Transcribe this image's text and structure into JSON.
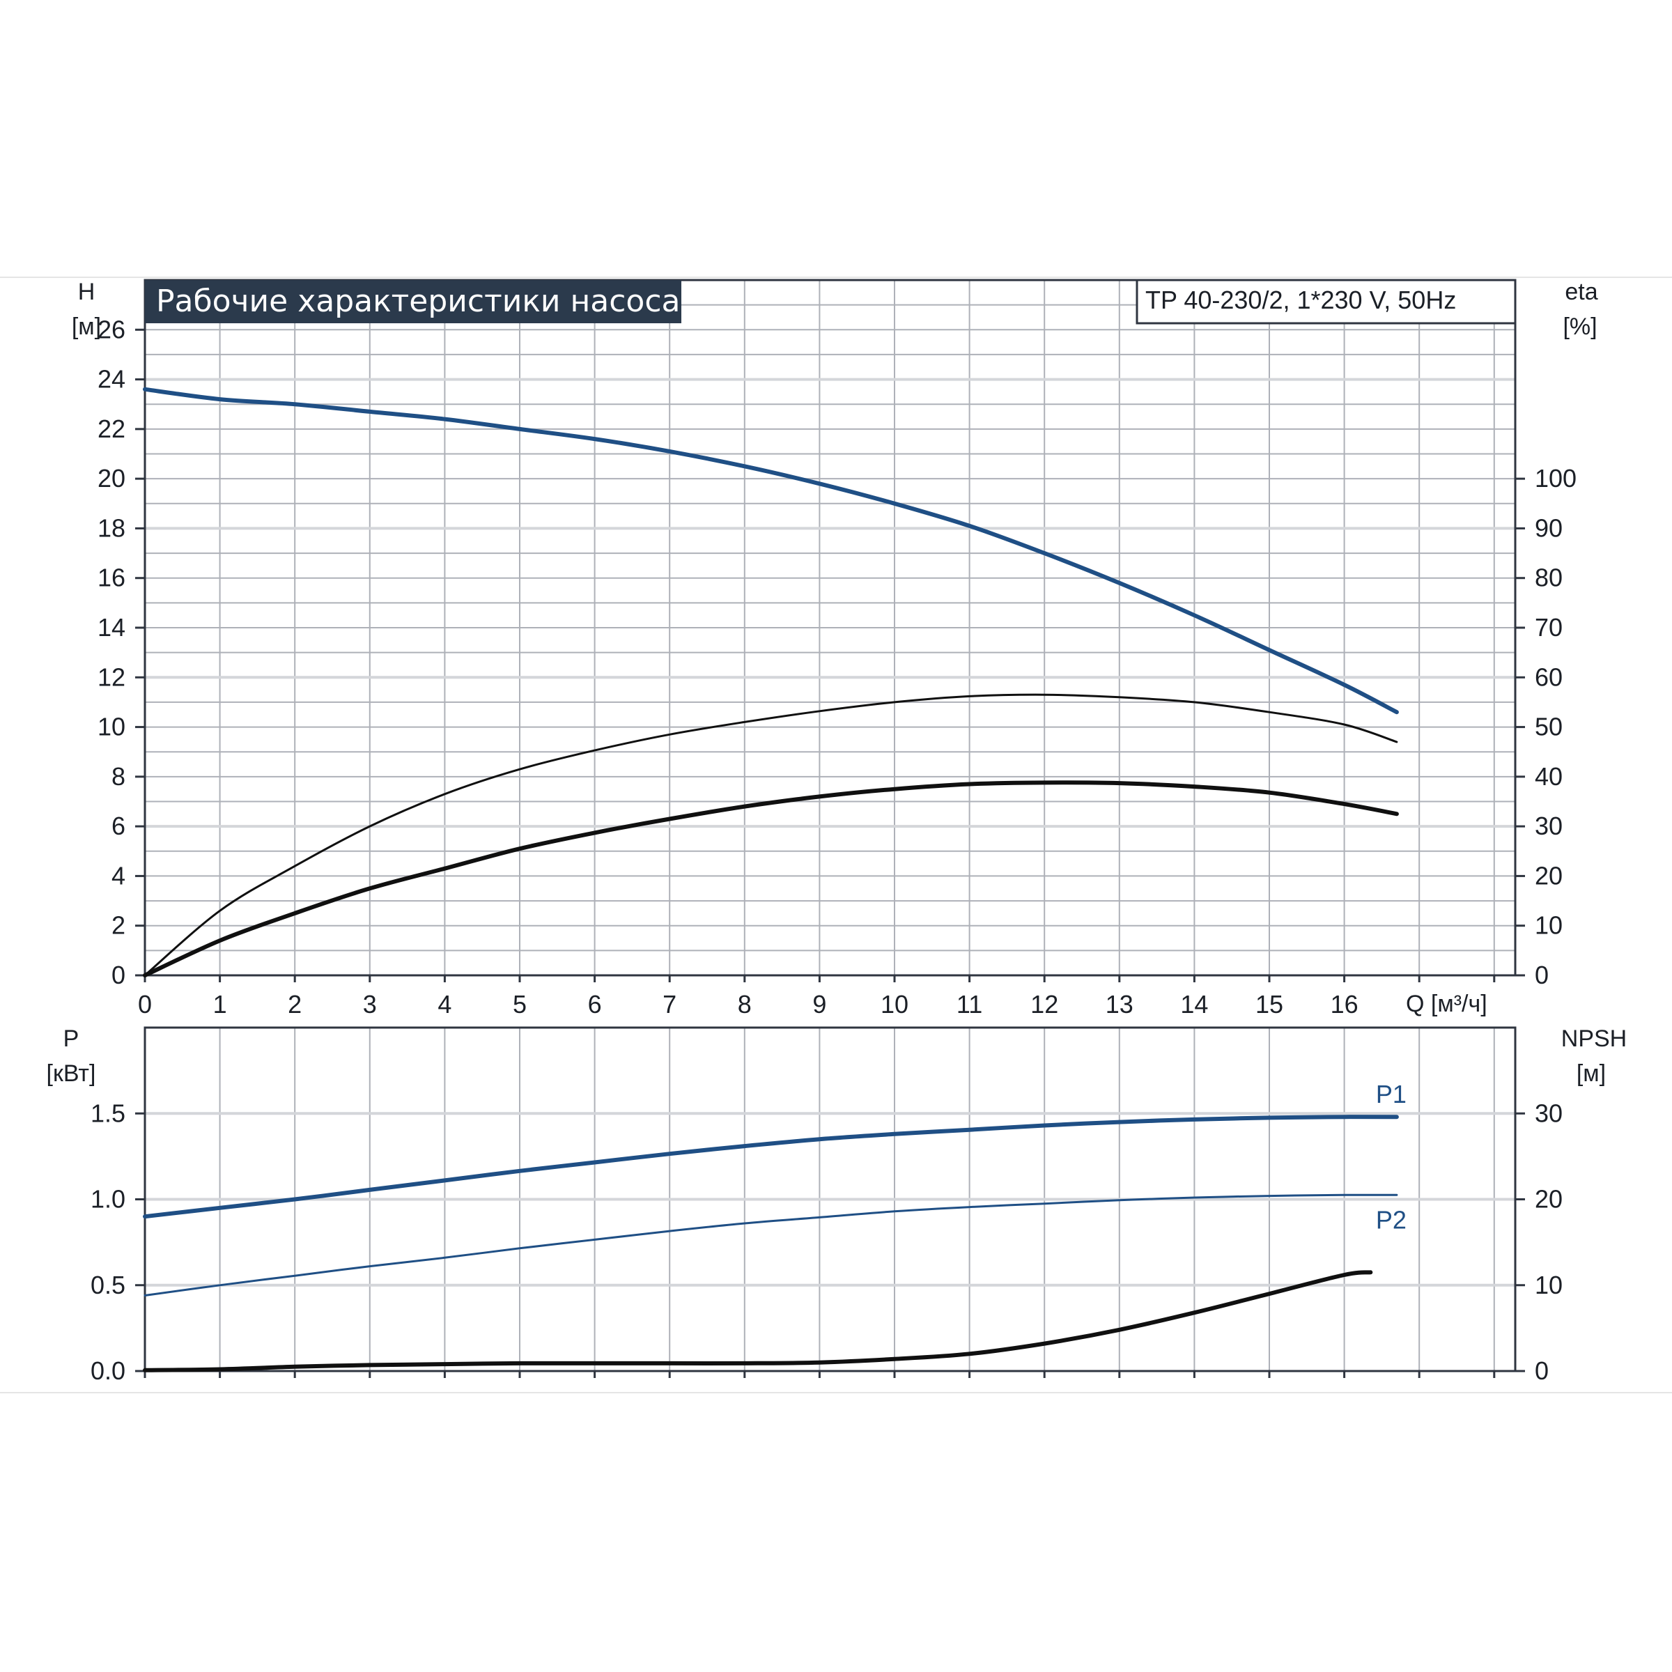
{
  "colors": {
    "blue": "#1f4f85",
    "black": "#101010",
    "title_bg": "#2b3a4c",
    "title_fg": "#ffffff",
    "grid": "#aeb1b8"
  },
  "chart_data": [
    {
      "type": "line",
      "title": "Рабочие характеристики насоса",
      "model": "TP 40-230/2, 1*230 V, 50Hz",
      "xlabel": "Q [м³/ч]",
      "xlim": [
        0,
        18.2
      ],
      "x_ticks": [
        0,
        1,
        2,
        3,
        4,
        5,
        6,
        7,
        8,
        9,
        10,
        11,
        12,
        13,
        14,
        15,
        16
      ],
      "y_left": {
        "label_top": "H",
        "label_unit": "[м]",
        "lim": [
          0,
          28
        ],
        "ticks": [
          0,
          2,
          4,
          6,
          8,
          10,
          12,
          14,
          16,
          18,
          20,
          22,
          24,
          26
        ]
      },
      "y_right": {
        "label_top": "eta",
        "label_unit": "[%]",
        "lim": [
          0,
          140
        ],
        "ticks": [
          0,
          10,
          20,
          30,
          40,
          50,
          60,
          70,
          80,
          90,
          100
        ]
      },
      "grid": true,
      "series": [
        {
          "axis": "left",
          "color": "blue",
          "weight": "thick",
          "x": [
            0,
            1,
            2,
            3,
            4,
            5,
            6,
            7,
            8,
            9,
            10,
            11,
            12,
            13,
            14,
            15,
            16,
            16.7
          ],
          "y": [
            23.6,
            23.2,
            23.0,
            22.7,
            22.4,
            22.0,
            21.6,
            21.1,
            20.5,
            19.8,
            19.0,
            18.1,
            17.0,
            15.8,
            14.5,
            13.1,
            11.7,
            10.6
          ]
        },
        {
          "axis": "right",
          "color": "black",
          "weight": "thin",
          "x": [
            0,
            1,
            2,
            3,
            4,
            5,
            6,
            7,
            8,
            9,
            10,
            11,
            12,
            13,
            14,
            15,
            16,
            16.7
          ],
          "y": [
            0,
            13,
            22,
            30,
            36.5,
            41.5,
            45.3,
            48.5,
            51,
            53.2,
            55,
            56.2,
            56.5,
            56,
            55,
            53,
            50.5,
            47
          ]
        },
        {
          "axis": "right",
          "color": "black",
          "weight": "thick",
          "x": [
            0,
            1,
            2,
            3,
            4,
            5,
            6,
            7,
            8,
            9,
            10,
            11,
            12,
            13,
            14,
            15,
            16,
            16.7
          ],
          "y": [
            0,
            7,
            12.5,
            17.5,
            21.5,
            25.5,
            28.7,
            31.5,
            34,
            36,
            37.5,
            38.5,
            38.8,
            38.7,
            38,
            36.8,
            34.5,
            32.5
          ]
        }
      ]
    },
    {
      "type": "line",
      "xlim": [
        0,
        18.2
      ],
      "x_ticks": [
        0,
        1,
        2,
        3,
        4,
        5,
        6,
        7,
        8,
        9,
        10,
        11,
        12,
        13,
        14,
        15,
        16
      ],
      "y_left": {
        "label_top": "P",
        "label_unit": "[кВт]",
        "lim": [
          0,
          2.0
        ],
        "ticks": [
          "0.0",
          "0.5",
          "1.0",
          "1.5"
        ]
      },
      "y_right": {
        "label_top": "NPSH",
        "label_unit": "[м]",
        "lim": [
          0,
          40
        ],
        "ticks": [
          0,
          10,
          20,
          30
        ]
      },
      "grid": true,
      "series": [
        {
          "name": "P1",
          "axis": "left",
          "color": "blue",
          "weight": "thick",
          "x": [
            0,
            1,
            2,
            3,
            4,
            5,
            6,
            7,
            8,
            9,
            10,
            11,
            12,
            13,
            14,
            15,
            16,
            16.7
          ],
          "y": [
            0.9,
            0.95,
            1.0,
            1.055,
            1.11,
            1.165,
            1.215,
            1.265,
            1.31,
            1.35,
            1.38,
            1.405,
            1.43,
            1.45,
            1.465,
            1.475,
            1.48,
            1.48
          ]
        },
        {
          "name": "P2",
          "axis": "left",
          "color": "blue",
          "weight": "thin",
          "x": [
            0,
            1,
            2,
            3,
            4,
            5,
            6,
            7,
            8,
            9,
            10,
            11,
            12,
            13,
            14,
            15,
            16,
            16.7
          ],
          "y": [
            0.44,
            0.5,
            0.555,
            0.61,
            0.66,
            0.715,
            0.765,
            0.815,
            0.86,
            0.895,
            0.93,
            0.955,
            0.975,
            0.995,
            1.01,
            1.02,
            1.025,
            1.025
          ]
        },
        {
          "axis": "right",
          "color": "black",
          "weight": "thick",
          "x": [
            0,
            1,
            2,
            3,
            4,
            5,
            6,
            7,
            8,
            9,
            10,
            11,
            12,
            13,
            14,
            15,
            16,
            16.35
          ],
          "y": [
            0.1,
            0.2,
            0.5,
            0.7,
            0.8,
            0.9,
            0.9,
            0.9,
            0.9,
            1.0,
            1.4,
            2.0,
            3.2,
            4.8,
            6.8,
            9.0,
            11.2,
            11.5
          ]
        }
      ]
    }
  ]
}
